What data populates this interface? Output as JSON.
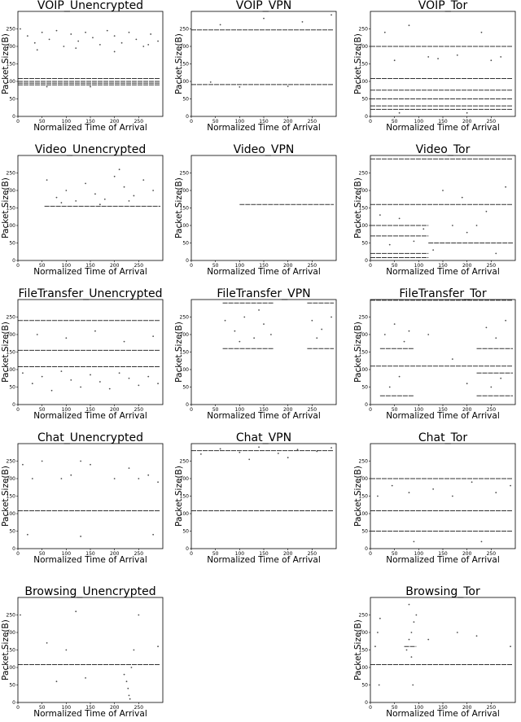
{
  "chart_data": [
    {
      "type": "scatter",
      "title": "VOIP_Unencrypted",
      "xlabel": "Normalized Time of Arrival",
      "ylabel": "Packet Size(B)",
      "xlim": [
        0,
        300
      ],
      "ylim": [
        0,
        300
      ],
      "xticks": [
        0,
        50,
        100,
        150,
        200,
        250
      ],
      "yticks": [
        0,
        50,
        100,
        150,
        200,
        250
      ],
      "color": "#000000",
      "bands": [
        {
          "x": [
            0,
            295
          ],
          "y": 108
        },
        {
          "x": [
            0,
            295
          ],
          "y": 100
        },
        {
          "x": [
            0,
            295
          ],
          "y": 95
        },
        {
          "x": [
            0,
            295
          ],
          "y": 90
        }
      ],
      "points": {
        "x": [
          5,
          20,
          35,
          50,
          65,
          80,
          95,
          110,
          125,
          140,
          155,
          170,
          185,
          200,
          215,
          230,
          245,
          260,
          275,
          290,
          40,
          120,
          200,
          270,
          60,
          150
        ],
        "y": [
          250,
          230,
          210,
          240,
          220,
          245,
          200,
          235,
          215,
          240,
          225,
          205,
          245,
          230,
          210,
          240,
          220,
          200,
          235,
          215,
          190,
          195,
          185,
          205,
          85,
          85
        ]
      }
    },
    {
      "type": "scatter",
      "title": "VOIP_VPN",
      "xlabel": "Normalized Time of Arrival",
      "ylabel": "Packet Size(B)",
      "xlim": [
        0,
        300
      ],
      "ylim": [
        0,
        300
      ],
      "xticks": [
        0,
        50,
        100,
        150,
        200,
        250
      ],
      "yticks": [
        0,
        50,
        100,
        150,
        200,
        250
      ],
      "color": "#000000",
      "bands": [
        {
          "x": [
            0,
            295
          ],
          "y": 247
        },
        {
          "x": [
            0,
            295
          ],
          "y": 91
        }
      ],
      "points": {
        "x": [
          60,
          150,
          230,
          290,
          100,
          200,
          40
        ],
        "y": [
          262,
          280,
          270,
          290,
          84,
          86,
          98
        ]
      }
    },
    {
      "type": "scatter",
      "title": "VOIP_Tor",
      "xlabel": "Normalized Time of Arrival",
      "ylabel": "Packet Size(B)",
      "xlim": [
        0,
        300
      ],
      "ylim": [
        0,
        300
      ],
      "xticks": [
        0,
        50,
        100,
        150,
        200,
        250
      ],
      "yticks": [
        0,
        50,
        100,
        150,
        200,
        250
      ],
      "color": "#000000",
      "bands": [
        {
          "x": [
            0,
            295
          ],
          "y": 200
        },
        {
          "x": [
            0,
            295
          ],
          "y": 108
        },
        {
          "x": [
            0,
            295
          ],
          "y": 50
        },
        {
          "x": [
            0,
            295
          ],
          "y": 75
        },
        {
          "x": [
            0,
            295
          ],
          "y": 30
        },
        {
          "x": [
            0,
            295
          ],
          "y": 20
        }
      ],
      "points": {
        "x": [
          30,
          80,
          120,
          180,
          230,
          270,
          50,
          140,
          250,
          60,
          200
        ],
        "y": [
          240,
          260,
          170,
          175,
          240,
          170,
          160,
          165,
          160,
          10,
          10
        ]
      }
    },
    {
      "type": "scatter",
      "title": "Video_Unencrypted",
      "xlabel": "Normalized Time of Arrival",
      "ylabel": "Packet Size(B)",
      "xlim": [
        0,
        300
      ],
      "ylim": [
        0,
        300
      ],
      "xticks": [
        0,
        50,
        100,
        150,
        200,
        250
      ],
      "yticks": [
        0,
        50,
        100,
        150,
        200,
        250
      ],
      "color": "#000000",
      "bands": [
        {
          "x": [
            55,
            295
          ],
          "y": 155
        }
      ],
      "points": {
        "x": [
          60,
          80,
          100,
          120,
          140,
          160,
          180,
          200,
          220,
          240,
          260,
          280,
          90,
          170,
          230,
          210
        ],
        "y": [
          230,
          180,
          200,
          170,
          220,
          190,
          175,
          240,
          210,
          185,
          230,
          200,
          165,
          160,
          170,
          260
        ]
      }
    },
    {
      "type": "scatter",
      "title": "Video_VPN",
      "xlabel": "Normalized Time of Arrival",
      "ylabel": "Packet Size(B)",
      "xlim": [
        0,
        300
      ],
      "ylim": [
        0,
        300
      ],
      "xticks": [
        0,
        50,
        100,
        150,
        200,
        250
      ],
      "yticks": [
        0,
        50,
        100,
        150,
        200,
        250
      ],
      "color": "#000000",
      "bands": [
        {
          "x": [
            100,
            295
          ],
          "y": 160
        }
      ],
      "points": {
        "x": [],
        "y": []
      }
    },
    {
      "type": "scatter",
      "title": "Video_Tor",
      "xlabel": "Normalized Time of Arrival",
      "ylabel": "Packet Size(B)",
      "xlim": [
        0,
        300
      ],
      "ylim": [
        0,
        300
      ],
      "xticks": [
        0,
        50,
        100,
        150,
        200,
        250
      ],
      "yticks": [
        0,
        50,
        100,
        150,
        200,
        250
      ],
      "color": "#000000",
      "bands": [
        {
          "x": [
            0,
            295
          ],
          "y": 290
        },
        {
          "x": [
            0,
            295
          ],
          "y": 160
        },
        {
          "x": [
            0,
            120
          ],
          "y": 100
        },
        {
          "x": [
            0,
            120
          ],
          "y": 70
        },
        {
          "x": [
            0,
            120
          ],
          "y": 20
        },
        {
          "x": [
            0,
            120
          ],
          "y": 8
        },
        {
          "x": [
            120,
            295
          ],
          "y": 50
        }
      ],
      "points": {
        "x": [
          20,
          60,
          110,
          150,
          190,
          240,
          280,
          40,
          90,
          170,
          220,
          260,
          130,
          200
        ],
        "y": [
          130,
          120,
          90,
          200,
          180,
          140,
          210,
          45,
          55,
          100,
          100,
          20,
          30,
          80
        ]
      }
    },
    {
      "type": "scatter",
      "title": "FileTransfer_Unencrypted",
      "xlabel": "Normalized Time of Arrival",
      "ylabel": "Packet Size(B)",
      "xlim": [
        0,
        300
      ],
      "ylim": [
        0,
        300
      ],
      "xticks": [
        0,
        50,
        100,
        150,
        200,
        250
      ],
      "yticks": [
        0,
        50,
        100,
        150,
        200,
        250
      ],
      "color": "#000000",
      "bands": [
        {
          "x": [
            0,
            295
          ],
          "y": 155
        },
        {
          "x": [
            0,
            295
          ],
          "y": 108
        },
        {
          "x": [
            0,
            295
          ],
          "y": 240
        }
      ],
      "points": {
        "x": [
          10,
          30,
          50,
          70,
          90,
          110,
          130,
          150,
          170,
          190,
          210,
          230,
          250,
          270,
          290,
          40,
          100,
          160,
          220,
          280
        ],
        "y": [
          90,
          60,
          80,
          40,
          95,
          70,
          50,
          85,
          65,
          45,
          90,
          75,
          55,
          80,
          60,
          200,
          190,
          210,
          180,
          195
        ]
      }
    },
    {
      "type": "scatter",
      "title": "FileTransfer_VPN",
      "xlabel": "Normalized Time of Arrival",
      "ylabel": "Packet Size(B)",
      "xlim": [
        0,
        300
      ],
      "ylim": [
        0,
        300
      ],
      "xticks": [
        0,
        50,
        100,
        150,
        200,
        250
      ],
      "yticks": [
        0,
        50,
        100,
        150,
        200,
        250
      ],
      "color": "#000000",
      "bands": [
        {
          "x": [
            65,
            170
          ],
          "y": 160
        },
        {
          "x": [
            240,
            295
          ],
          "y": 160
        },
        {
          "x": [
            65,
            170
          ],
          "y": 290
        },
        {
          "x": [
            240,
            295
          ],
          "y": 290
        }
      ],
      "points": {
        "x": [
          70,
          90,
          110,
          130,
          150,
          165,
          250,
          270,
          290,
          100,
          140,
          260
        ],
        "y": [
          240,
          210,
          250,
          190,
          230,
          200,
          240,
          215,
          250,
          180,
          270,
          190
        ]
      }
    },
    {
      "type": "scatter",
      "title": "FileTransfer_Tor",
      "xlabel": "Normalized Time of Arrival",
      "ylabel": "Packet Size(B)",
      "xlim": [
        0,
        300
      ],
      "ylim": [
        0,
        300
      ],
      "xticks": [
        0,
        50,
        100,
        150,
        200,
        250
      ],
      "yticks": [
        0,
        50,
        100,
        150,
        200,
        250
      ],
      "color": "#000000",
      "bands": [
        {
          "x": [
            0,
            295
          ],
          "y": 298
        },
        {
          "x": [
            0,
            295
          ],
          "y": 110
        },
        {
          "x": [
            220,
            295
          ],
          "y": 90
        },
        {
          "x": [
            20,
            90
          ],
          "y": 160
        },
        {
          "x": [
            220,
            295
          ],
          "y": 160
        },
        {
          "x": [
            20,
            90
          ],
          "y": 25
        },
        {
          "x": [
            220,
            295
          ],
          "y": 25
        }
      ],
      "points": {
        "x": [
          30,
          50,
          70,
          80,
          240,
          260,
          280,
          120,
          170,
          200,
          40,
          250,
          60,
          270
        ],
        "y": [
          200,
          230,
          180,
          210,
          220,
          190,
          240,
          200,
          130,
          60,
          50,
          50,
          80,
          75
        ]
      }
    },
    {
      "type": "scatter",
      "title": "Chat_Unencrypted",
      "xlabel": "Normalized Time of Arrival",
      "ylabel": "Packet Size(B)",
      "xlim": [
        0,
        300
      ],
      "ylim": [
        0,
        300
      ],
      "xticks": [
        0,
        50,
        100,
        150,
        200,
        250
      ],
      "yticks": [
        0,
        50,
        100,
        150,
        200,
        250
      ],
      "color": "#000000",
      "bands": [
        {
          "x": [
            0,
            295
          ],
          "y": 108
        }
      ],
      "points": {
        "x": [
          10,
          30,
          50,
          90,
          110,
          130,
          150,
          200,
          230,
          250,
          270,
          290,
          20,
          130,
          280
        ],
        "y": [
          240,
          200,
          250,
          200,
          210,
          250,
          240,
          200,
          230,
          200,
          210,
          190,
          40,
          35,
          40
        ]
      }
    },
    {
      "type": "scatter",
      "title": "Chat_VPN",
      "xlabel": "Normalized Time of Arrival",
      "ylabel": "Packet Size(B)",
      "xlim": [
        0,
        300
      ],
      "ylim": [
        0,
        300
      ],
      "xticks": [
        0,
        50,
        100,
        150,
        200,
        250
      ],
      "yticks": [
        0,
        50,
        100,
        150,
        200,
        250
      ],
      "color": "#000000",
      "bands": [
        {
          "x": [
            0,
            295
          ],
          "y": 108
        },
        {
          "x": [
            0,
            295
          ],
          "y": 280
        }
      ],
      "points": {
        "x": [
          20,
          60,
          100,
          140,
          180,
          220,
          260,
          290,
          120,
          200
        ],
        "y": [
          270,
          285,
          275,
          290,
          272,
          283,
          278,
          288,
          255,
          260
        ]
      }
    },
    {
      "type": "scatter",
      "title": "Chat_Tor",
      "xlabel": "Normalized Time of Arrival",
      "ylabel": "Packet Size(B)",
      "xlim": [
        0,
        300
      ],
      "ylim": [
        0,
        300
      ],
      "xticks": [
        0,
        50,
        100,
        150,
        200,
        250
      ],
      "yticks": [
        0,
        50,
        100,
        150,
        200,
        250
      ],
      "color": "#000000",
      "bands": [
        {
          "x": [
            0,
            295
          ],
          "y": 200
        },
        {
          "x": [
            0,
            295
          ],
          "y": 108
        },
        {
          "x": [
            0,
            295
          ],
          "y": 50
        }
      ],
      "points": {
        "x": [
          15,
          45,
          80,
          130,
          170,
          210,
          260,
          290,
          90,
          230
        ],
        "y": [
          150,
          180,
          160,
          170,
          150,
          190,
          160,
          180,
          20,
          20
        ]
      }
    },
    {
      "type": "scatter",
      "title": "Browsing_Unencrypted",
      "xlabel": "Normalized Time of Arrival",
      "ylabel": "Packet Size(B)",
      "xlim": [
        0,
        300
      ],
      "ylim": [
        0,
        300
      ],
      "xticks": [
        0,
        50,
        100,
        150,
        200,
        250
      ],
      "yticks": [
        0,
        50,
        100,
        150,
        200,
        250
      ],
      "color": "#000000",
      "bands": [
        {
          "x": [
            0,
            295
          ],
          "y": 108
        }
      ],
      "points": {
        "x": [
          5,
          60,
          100,
          120,
          220,
          225,
          228,
          230,
          232,
          235,
          240,
          250,
          80,
          140,
          290
        ],
        "y": [
          250,
          170,
          150,
          260,
          80,
          60,
          40,
          20,
          10,
          100,
          150,
          250,
          60,
          70,
          160
        ]
      }
    },
    {
      "type": "scatter",
      "title": "Browsing_Tor",
      "xlabel": "Normalized Time of Arrival",
      "ylabel": "Packet Size(B)",
      "xlim": [
        0,
        300
      ],
      "ylim": [
        0,
        300
      ],
      "xticks": [
        0,
        50,
        100,
        150,
        200,
        250
      ],
      "yticks": [
        0,
        50,
        100,
        150,
        200,
        250
      ],
      "color": "#000000",
      "bands": [
        {
          "x": [
            0,
            295
          ],
          "y": 108
        },
        {
          "x": [
            70,
            95
          ],
          "y": 160
        }
      ],
      "points": {
        "x": [
          10,
          15,
          20,
          75,
          80,
          85,
          90,
          95,
          80,
          85,
          120,
          180,
          220,
          290,
          18,
          88
        ],
        "y": [
          160,
          200,
          240,
          150,
          180,
          200,
          230,
          250,
          280,
          130,
          180,
          200,
          190,
          160,
          50,
          50
        ]
      }
    }
  ]
}
